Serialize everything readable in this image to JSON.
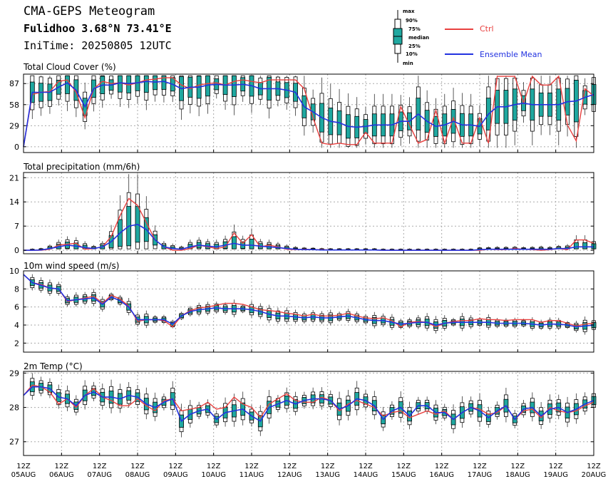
{
  "header": {
    "title": "CMA-GEPS Meteogram",
    "location": "Fulidhoo 3.68°N 73.41°E",
    "init_time": "IniTime: 20250805 12UTC"
  },
  "legend": {
    "box_key_labels": [
      "max",
      "90%",
      "75%",
      "median",
      "25%",
      "10%",
      "min"
    ],
    "ctrl_label": "Ctrl",
    "mean_label": "Ensemble Mean",
    "ctrl_color": "#e8403f",
    "mean_color": "#2232e0",
    "box_color": "#1fa8a0"
  },
  "x_ticks": [
    {
      "top": "12Z",
      "bottom": "05AUG"
    },
    {
      "top": "12Z",
      "bottom": "06AUG"
    },
    {
      "top": "12Z",
      "bottom": "07AUG"
    },
    {
      "top": "12Z",
      "bottom": "08AUG"
    },
    {
      "top": "12Z",
      "bottom": "09AUG"
    },
    {
      "top": "12Z",
      "bottom": "10AUG"
    },
    {
      "top": "12Z",
      "bottom": "11AUG"
    },
    {
      "top": "12Z",
      "bottom": "12AUG"
    },
    {
      "top": "12Z",
      "bottom": "13AUG"
    },
    {
      "top": "12Z",
      "bottom": "14AUG"
    },
    {
      "top": "12Z",
      "bottom": "15AUG"
    },
    {
      "top": "12Z",
      "bottom": "16AUG"
    },
    {
      "top": "12Z",
      "bottom": "17AUG"
    },
    {
      "top": "12Z",
      "bottom": "18AUG"
    },
    {
      "top": "12Z",
      "bottom": "19AUG"
    },
    {
      "top": "12Z",
      "bottom": "20AUG"
    }
  ],
  "chart_data": [
    {
      "type": "line",
      "title": "Total Cloud Cover (%)",
      "ylim": [
        -8,
        100
      ],
      "yticks": [
        0,
        29,
        58,
        87
      ],
      "ctrl": [
        0,
        72,
        75,
        76,
        90,
        92,
        75,
        40,
        80,
        90,
        87,
        88,
        85,
        88,
        92,
        93,
        95,
        95,
        85,
        80,
        85,
        87,
        88,
        85,
        90,
        92,
        90,
        88,
        92,
        92,
        92,
        92,
        80,
        40,
        5,
        3,
        5,
        3,
        3,
        20,
        5,
        5,
        5,
        55,
        30,
        5,
        10,
        50,
        5,
        40,
        5,
        5,
        40,
        5,
        97,
        97,
        97,
        60,
        97,
        85,
        85,
        97,
        30,
        8,
        80,
        70
      ],
      "mean": [
        0,
        75,
        75,
        75,
        82,
        88,
        78,
        55,
        80,
        85,
        85,
        88,
        87,
        88,
        90,
        89,
        90,
        86,
        80,
        82,
        82,
        85,
        86,
        85,
        85,
        86,
        84,
        80,
        80,
        80,
        78,
        75,
        55,
        48,
        40,
        35,
        33,
        28,
        27,
        28,
        30,
        30,
        30,
        35,
        35,
        45,
        35,
        28,
        30,
        35,
        30,
        30,
        28,
        45,
        55,
        55,
        58,
        60,
        58,
        58,
        58,
        58,
        62,
        63,
        68,
        72
      ]
    },
    {
      "type": "line",
      "title": "Total precipitation (mm/6h)",
      "ylim": [
        -1,
        22.5
      ],
      "yticks": [
        0,
        7,
        14,
        21
      ],
      "ctrl": [
        0,
        0,
        0,
        0.3,
        1.5,
        1.8,
        2,
        0.3,
        0.5,
        1,
        4,
        10,
        15,
        13,
        8,
        3,
        1,
        0,
        0,
        0.5,
        1.5,
        1,
        0.5,
        1,
        5,
        2,
        4.5,
        1,
        1.5,
        1,
        0.3,
        0.2,
        0.3,
        0.2,
        0.2,
        0.1,
        0.1,
        0.1,
        0.1,
        0.1,
        0.1,
        0,
        0,
        0,
        0,
        0,
        0,
        0,
        0,
        0,
        0,
        0,
        0,
        0.3,
        0.2,
        0.2,
        0.5,
        0.3,
        0.2,
        0,
        0.2,
        0.5,
        0.2,
        3,
        3,
        2
      ],
      "mean": [
        0,
        0,
        0.1,
        0.5,
        1,
        1.5,
        1.2,
        0.8,
        0.5,
        1,
        2.5,
        5,
        7,
        7.5,
        6,
        3,
        1,
        0.5,
        0.3,
        1,
        1.5,
        1.2,
        1,
        1.5,
        2,
        1.5,
        1.5,
        1.2,
        1,
        0.8,
        0.5,
        0.3,
        0.2,
        0.2,
        0.1,
        0.1,
        0.1,
        0.1,
        0.1,
        0.1,
        0.1,
        0,
        0,
        0,
        0,
        0,
        0,
        0,
        0,
        0,
        0,
        0,
        0.2,
        0.3,
        0.3,
        0.3,
        0.3,
        0.3,
        0.3,
        0.3,
        0.3,
        0.5,
        0.5,
        1,
        1,
        1
      ]
    },
    {
      "type": "line",
      "title": "10m wind speed (m/s)",
      "ylim": [
        1,
        10
      ],
      "yticks": [
        2,
        4,
        6,
        8,
        10
      ],
      "ctrl": [
        9.6,
        8.7,
        8.5,
        8.1,
        8,
        6.6,
        6.8,
        7,
        7.2,
        6.4,
        7.3,
        6.9,
        6.1,
        4.4,
        4.6,
        4.6,
        4.5,
        3.8,
        5,
        5.6,
        5.9,
        6,
        6.2,
        6.4,
        6.4,
        6.3,
        6,
        5.7,
        5.6,
        5.5,
        5.3,
        5.2,
        5,
        5.2,
        5,
        5,
        5.1,
        5.3,
        5,
        4.8,
        4.7,
        4.8,
        4.5,
        3.8,
        4.3,
        4.4,
        4.3,
        3.8,
        4.2,
        4.4,
        4.5,
        4.5,
        4.7,
        4.6,
        4.6,
        4.5,
        4.6,
        4.6,
        4.6,
        4.3,
        4.5,
        4.5,
        4.2,
        3.9,
        4.1,
        4.2
      ],
      "mean": [
        9.6,
        8.7,
        8.4,
        8.1,
        8,
        6.7,
        6.8,
        6.9,
        7,
        6.3,
        7.1,
        6.7,
        6,
        4.6,
        4.6,
        4.6,
        4.6,
        4.1,
        5,
        5.5,
        5.7,
        5.8,
        5.9,
        5.8,
        5.8,
        5.8,
        5.7,
        5.5,
        5.2,
        5,
        5,
        4.9,
        4.8,
        4.9,
        4.8,
        4.8,
        4.9,
        5,
        4.8,
        4.6,
        4.5,
        4.5,
        4.3,
        4.1,
        4.2,
        4.3,
        4.3,
        4,
        4.2,
        4.3,
        4.3,
        4.3,
        4.3,
        4.3,
        4.2,
        4.2,
        4.2,
        4.2,
        4.1,
        4,
        4.1,
        4.1,
        4,
        3.8,
        3.9,
        4
      ]
    },
    {
      "type": "line",
      "title": "2m Temp (°C)",
      "ylim": [
        26.6,
        29.05
      ],
      "yticks": [
        27,
        28,
        29
      ],
      "ctrl": [
        28.35,
        28.65,
        28.6,
        28.45,
        28.1,
        28.25,
        28,
        28.35,
        28.55,
        28.3,
        28.2,
        28.05,
        28.05,
        28.25,
        28.05,
        27.9,
        28.2,
        28.25,
        27.9,
        27.95,
        28,
        28.15,
        27.95,
        28,
        28.3,
        28.1,
        28,
        27.7,
        28.1,
        28.25,
        28.4,
        28.2,
        28.15,
        28.15,
        28.3,
        28.2,
        27.9,
        28.1,
        28.2,
        28.1,
        28,
        27.75,
        27.85,
        27.9,
        27.7,
        27.8,
        27.9,
        27.8,
        27.9,
        27.65,
        27.85,
        28,
        27.95,
        27.8,
        27.85,
        28.05,
        27.65,
        27.9,
        27.95,
        27.7,
        28,
        27.9,
        27.85,
        27.9,
        28.05,
        28.15
      ],
      "mean": [
        28.35,
        28.6,
        28.6,
        28.55,
        28.3,
        28.25,
        28.05,
        28.35,
        28.45,
        28.3,
        28.3,
        28.25,
        28.35,
        28.3,
        28.1,
        28,
        28.15,
        28.25,
        27.6,
        27.8,
        27.9,
        27.95,
        27.65,
        27.85,
        27.9,
        27.95,
        27.75,
        27.6,
        28,
        28.1,
        28.2,
        28.1,
        28.2,
        28.25,
        28.25,
        28.2,
        27.95,
        28.05,
        28.25,
        28.2,
        28.05,
        27.65,
        27.9,
        28,
        27.75,
        28.05,
        28.05,
        27.85,
        27.85,
        27.65,
        27.85,
        28,
        27.9,
        27.7,
        27.9,
        28.05,
        27.65,
        27.95,
        28,
        27.75,
        27.95,
        28,
        27.85,
        27.95,
        28.1,
        28.2
      ]
    }
  ]
}
